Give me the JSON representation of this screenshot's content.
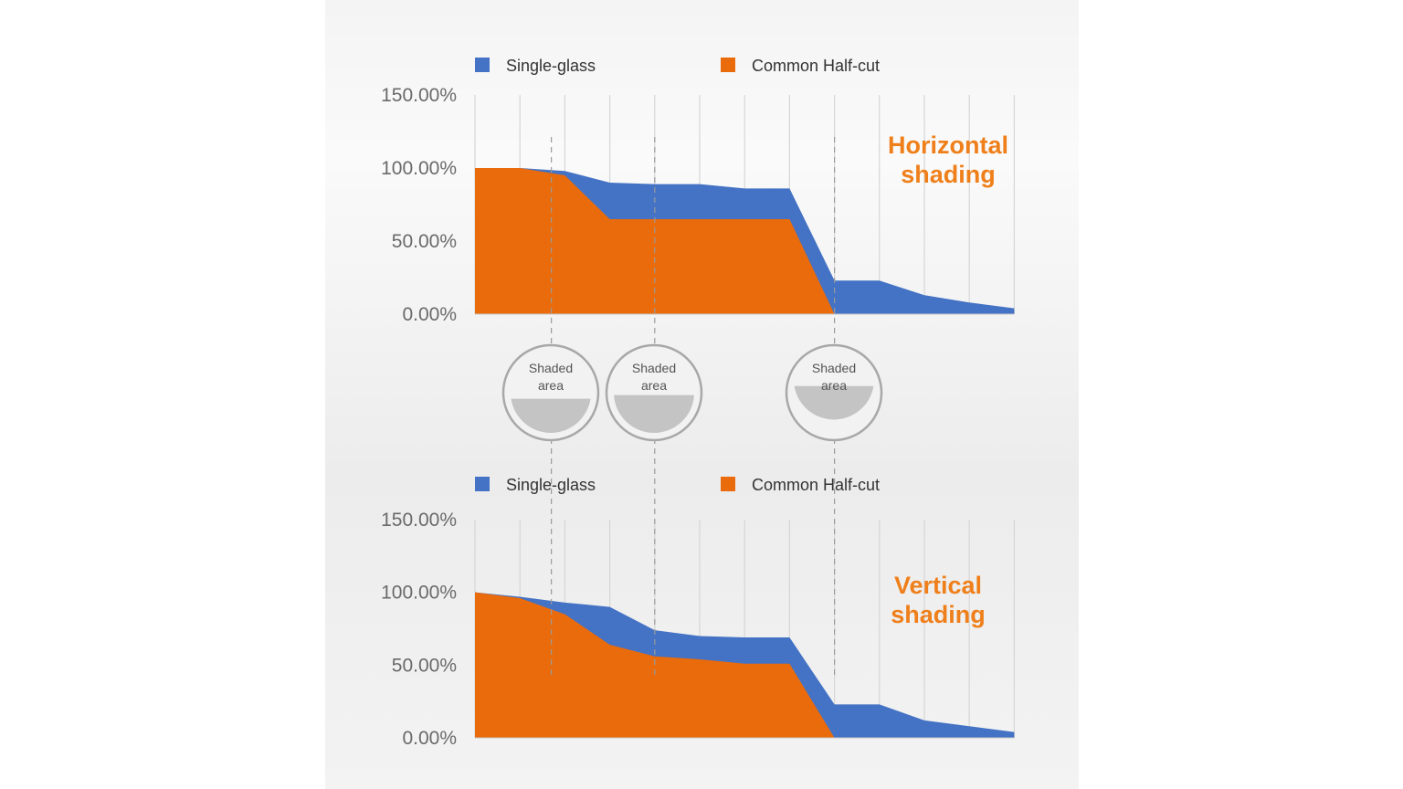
{
  "colors": {
    "single_glass": "#4472c4",
    "common_half_cut": "#e96b0c",
    "annotation": "#ef7f1a",
    "grid": "#d6d6d6",
    "shade": "#c4c4c4"
  },
  "chart_data": [
    {
      "type": "area",
      "annotation": [
        "Horizontal",
        "shading"
      ],
      "legend": [
        "Single-glass",
        "Common Half-cut"
      ],
      "x": [
        0,
        1,
        2,
        3,
        4,
        5,
        6,
        7,
        8,
        9,
        10,
        11,
        12
      ],
      "ylim": [
        0,
        1.5
      ],
      "yticks": [
        "0.00%",
        "50.00%",
        "100.00%",
        "150.00%"
      ],
      "grid": "vertical",
      "legend_position": "top",
      "series": [
        {
          "name": "Single-glass",
          "values": [
            1.0,
            1.0,
            0.98,
            0.9,
            0.89,
            0.89,
            0.86,
            0.86,
            0.23,
            0.23,
            0.13,
            0.08,
            0.04
          ]
        },
        {
          "name": "Common Half-cut",
          "values": [
            1.0,
            1.0,
            0.95,
            0.65,
            0.65,
            0.65,
            0.65,
            0.65,
            0.0,
            0.0,
            0.0,
            0.0,
            0.0
          ]
        }
      ]
    },
    {
      "type": "area",
      "annotation": [
        "Vertical",
        "shading"
      ],
      "legend": [
        "Single-glass",
        "Common Half-cut"
      ],
      "x": [
        0,
        1,
        2,
        3,
        4,
        5,
        6,
        7,
        8,
        9,
        10,
        11,
        12
      ],
      "ylim": [
        0,
        1.5
      ],
      "yticks": [
        "0.00%",
        "50.00%",
        "100.00%",
        "150.00%"
      ],
      "grid": "vertical",
      "legend_position": "top",
      "series": [
        {
          "name": "Single-glass",
          "values": [
            1.0,
            0.97,
            0.93,
            0.9,
            0.74,
            0.7,
            0.69,
            0.69,
            0.23,
            0.23,
            0.12,
            0.08,
            0.04
          ]
        },
        {
          "name": "Common Half-cut",
          "values": [
            1.0,
            0.96,
            0.85,
            0.64,
            0.56,
            0.54,
            0.51,
            0.51,
            0.0,
            0.0,
            0.0,
            0.0,
            0.0
          ]
        }
      ]
    }
  ],
  "shaded_markers": [
    {
      "label": [
        "Shaded",
        "area"
      ],
      "x": 1.7,
      "shade": 0.45
    },
    {
      "label": [
        "Shaded",
        "area"
      ],
      "x": 4.0,
      "shade": 0.55
    },
    {
      "label": [
        "Shaded",
        "area"
      ],
      "x": 8.0,
      "shade": 0.8
    }
  ]
}
